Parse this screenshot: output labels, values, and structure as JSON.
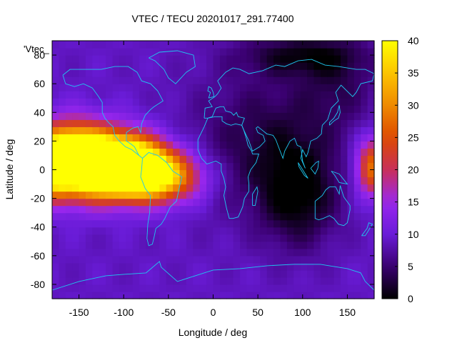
{
  "chart_data": {
    "type": "heatmap",
    "title": "VTEC / TECU 20201017_291.77400",
    "xlabel": "Longitude / deg",
    "ylabel": "Latitude / deg",
    "legend_entry": "'Vtec_",
    "xlim": [
      -180,
      180
    ],
    "ylim": [
      -90,
      90
    ],
    "x_ticks": [
      -150,
      -100,
      -50,
      0,
      50,
      100,
      150
    ],
    "y_ticks": [
      -80,
      -60,
      -40,
      -20,
      0,
      20,
      40,
      60,
      80
    ],
    "colorbar": {
      "range": [
        0,
        40
      ],
      "ticks": [
        0,
        5,
        10,
        15,
        20,
        25,
        30,
        35,
        40
      ],
      "colormap": "gnuplot-pm3d",
      "colors": [
        "#000000",
        "#3a0070",
        "#6a1cd8",
        "#9a27ee",
        "#c8305a",
        "#dd4a00",
        "#ef8a00",
        "#fdc400",
        "#ffff00"
      ]
    },
    "grid": false,
    "overlay": "coastlines",
    "coastline_color": "#1ec8f0",
    "features": [
      {
        "lon": -97,
        "lat": 2,
        "value": 38,
        "sx": 30,
        "sy": 13
      },
      {
        "lon": -130,
        "lat": 5,
        "value": 30,
        "sx": 40,
        "sy": 16
      },
      {
        "lon": -160,
        "lat": 8,
        "value": 27,
        "sx": 25,
        "sy": 16
      },
      {
        "lon": -55,
        "lat": -5,
        "value": 22,
        "sx": 30,
        "sy": 12
      },
      {
        "lon": 180,
        "lat": 2,
        "value": 20,
        "sx": 14,
        "sy": 14
      },
      {
        "lon": -180,
        "lat": 2,
        "value": 18,
        "sx": 12,
        "sy": 14
      },
      {
        "lon": 95,
        "lat": -18,
        "value": -8,
        "sx": 30,
        "sy": 25
      },
      {
        "lon": 60,
        "lat": 20,
        "value": -6,
        "sx": 60,
        "sy": 35
      },
      {
        "lon": 100,
        "lat": 80,
        "value": -7,
        "sx": 50,
        "sy": 10
      },
      {
        "lon": 140,
        "lat": 60,
        "value": -4,
        "sx": 30,
        "sy": 20
      }
    ],
    "background_value": 9
  }
}
